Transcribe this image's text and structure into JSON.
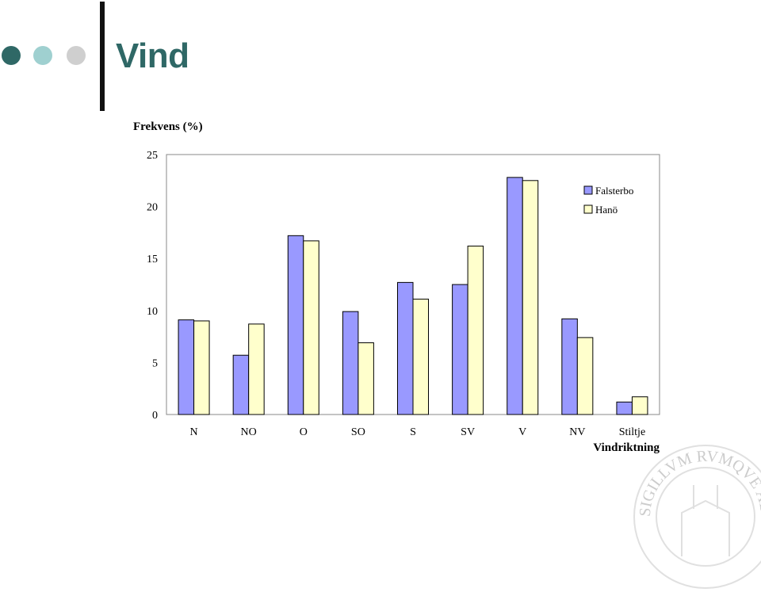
{
  "slide": {
    "title": "Vind",
    "accent_colors": [
      "#2f6866",
      "#9fd0d0",
      "#cfcfcf"
    ],
    "title_color": "#2f6866",
    "seal_icon": "university-seal-icon",
    "seal_text": "SIGILLVM RVMQVE ADVITAM CAROLINAE"
  },
  "chart_data": {
    "type": "bar",
    "ylabel": "Frekvens (%)",
    "xlabel": "Vindriktning",
    "categories": [
      "N",
      "NO",
      "O",
      "SO",
      "S",
      "SV",
      "V",
      "NV",
      "Stiltje"
    ],
    "ylim": [
      0,
      25
    ],
    "yticks": [
      0,
      5,
      10,
      15,
      20,
      25
    ],
    "legend_position": "top-right",
    "grid": false,
    "series": [
      {
        "name": "Falsterbo",
        "color": "#9999ff",
        "values": [
          9.1,
          5.7,
          17.2,
          9.9,
          12.7,
          12.5,
          22.8,
          9.2,
          1.2
        ]
      },
      {
        "name": "Hanö",
        "color": "#ffffcc",
        "values": [
          9.0,
          8.7,
          16.7,
          6.9,
          11.1,
          16.2,
          22.5,
          7.4,
          1.7
        ]
      }
    ]
  }
}
